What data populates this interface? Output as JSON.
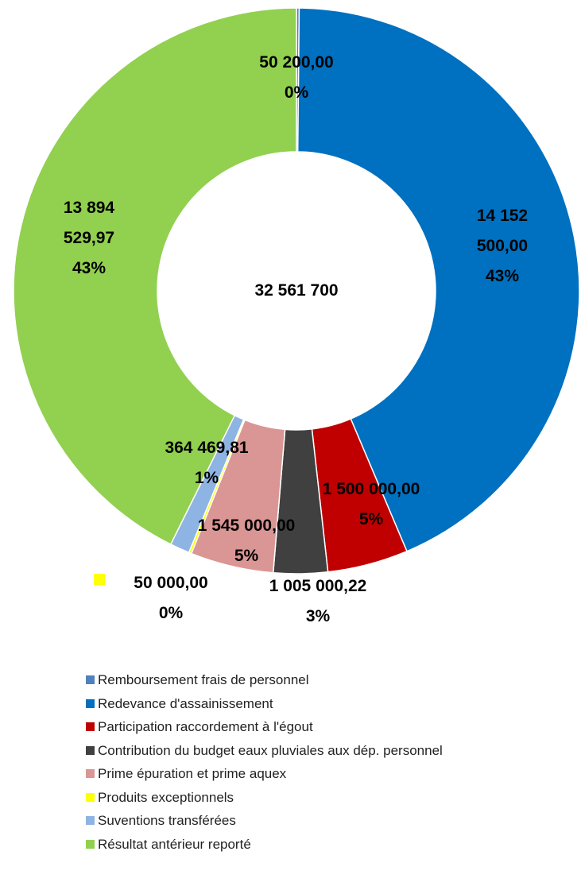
{
  "chart_data": {
    "type": "donut",
    "categories": [
      "Remboursement frais de  personnel",
      "Redevance d'assainissement",
      "Participation raccordement à l'égout",
      "Contribution du budget eaux pluviales aux dép. personnel",
      "Prime épuration et prime aquex",
      "Produits exceptionnels",
      "Suventions transférées",
      "Résultat antérieur reporté"
    ],
    "values": [
      50200,
      14152500,
      1500000,
      1005000.22,
      1545000,
      50000,
      364469.81,
      13894529.97
    ],
    "value_labels": [
      "50 200,00",
      "14 152 500,00",
      "1 500 000,00",
      "1 005 000,22",
      "1 545 000,00",
      "50 000,00",
      "364 469,81",
      "13 894 529,97"
    ],
    "percents": [
      0,
      43,
      5,
      3,
      5,
      0,
      1,
      43
    ],
    "percent_labels": [
      "0%",
      "43%",
      "5%",
      "3%",
      "5%",
      "0%",
      "1%",
      "43%"
    ],
    "colors": [
      "#4f81bd",
      "#0070c0",
      "#c00000",
      "#404040",
      "#da9694",
      "#ffff00",
      "#8db4e2",
      "#92d050"
    ],
    "center_label": "32 561 700",
    "legend": "bottom"
  }
}
